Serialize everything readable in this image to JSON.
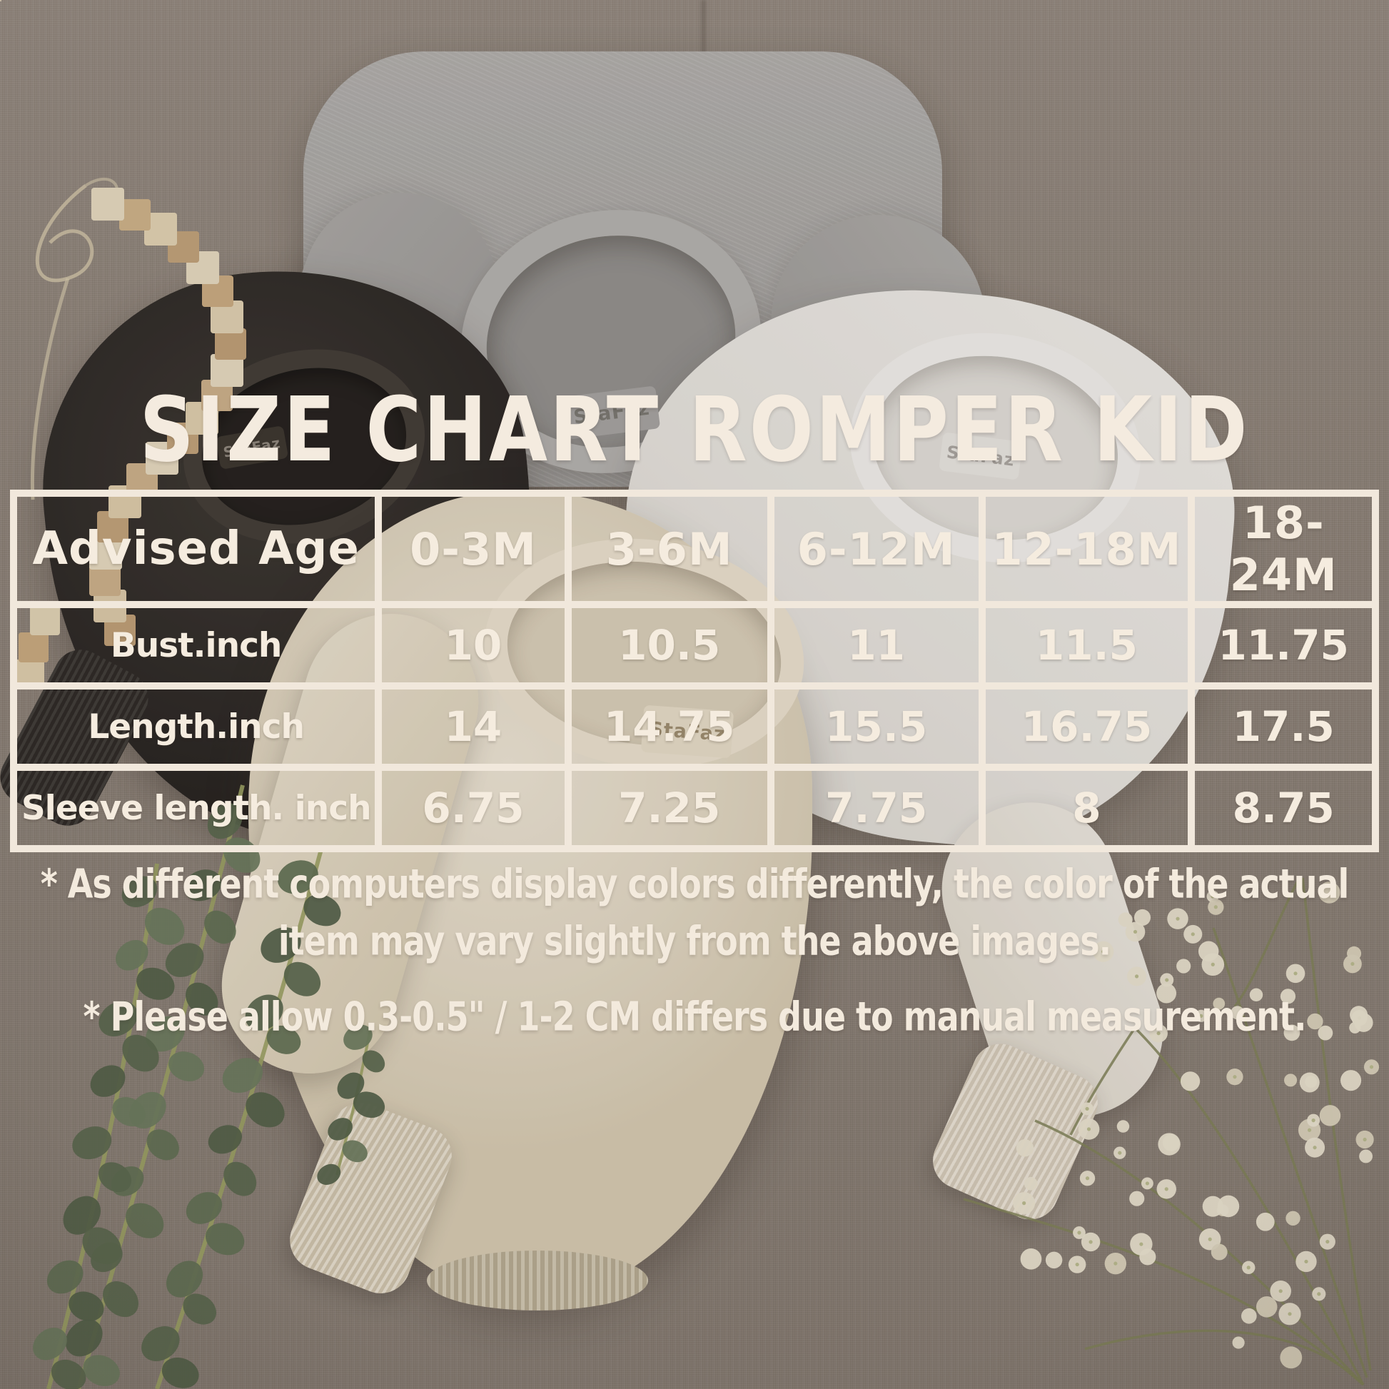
{
  "title": "SIZE CHART ROMPER KID",
  "photo": {
    "brand_tag": "StaFaz"
  },
  "size_table": {
    "header": [
      "Advised Age",
      "0-3M",
      "3-6M",
      "6-12M",
      "12-18M",
      "18-24M"
    ],
    "rows": [
      {
        "label": "Bust.inch",
        "values": [
          "10",
          "10.5",
          "11",
          "11.5",
          "11.75"
        ]
      },
      {
        "label": "Length.inch",
        "values": [
          "14",
          "14.75",
          "15.5",
          "16.75",
          "17.5"
        ]
      },
      {
        "label": "Sleeve length. inch",
        "values": [
          "6.75",
          "7.25",
          "7.75",
          "8",
          "8.75"
        ]
      }
    ]
  },
  "notes": {
    "note1_line1": "* As different computers display colors differently, the color of the actual",
    "note1_line2": "item may vary slightly from the above images.",
    "note2": "* Please allow 0.3-0.5\" / 1-2 CM differs due to manual measurement."
  },
  "colors": {
    "text_cream": "#f4ebdf",
    "table_border": "#f1e8dc",
    "linen_fabric": "#8b8076",
    "gray_romper": "#a5a3a1",
    "black_romper": "#262220",
    "white_romper": "#efece8",
    "cream_romper": "#e4dac6"
  },
  "chart_data": {
    "type": "table",
    "title": "SIZE CHART ROMPER KID",
    "columns": [
      "Advised Age",
      "0-3M",
      "3-6M",
      "6-12M",
      "12-18M",
      "18-24M"
    ],
    "rows": [
      [
        "Bust.inch",
        10,
        10.5,
        11,
        11.5,
        11.75
      ],
      [
        "Length.inch",
        14,
        14.75,
        15.5,
        16.75,
        17.5
      ],
      [
        "Sleeve length. inch",
        6.75,
        7.25,
        7.75,
        8,
        8.75
      ]
    ],
    "units": "inches",
    "notes": [
      "* As different computers display colors differently, the color of the actual item may vary slightly from the above images.",
      "* Please allow 0.3-0.5\" / 1-2 CM differs due to manual measurement."
    ]
  }
}
